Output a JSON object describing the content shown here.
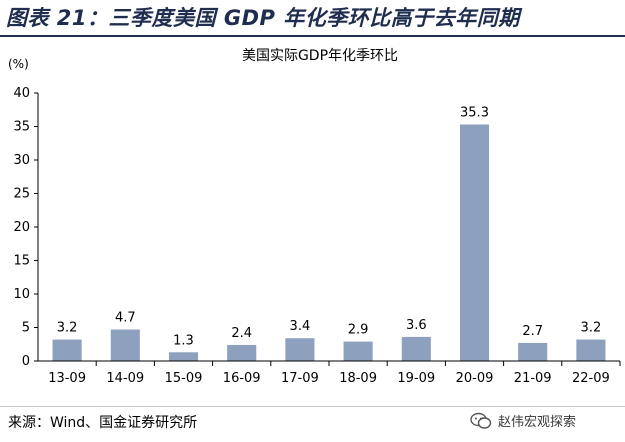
{
  "figure_title": "图表 21：三季度美国 GDP 年化季环比高于去年同期",
  "source": "来源：Wind、国金证券研究所",
  "watermark": "赵伟宏观探索",
  "watermark_icon": "wechat-icon",
  "colors": {
    "bar": "#8da0bd",
    "title": "#1f2d4e",
    "axis": "#000000"
  },
  "chart_data": {
    "type": "bar",
    "title": "美国实际GDP年化季环比",
    "ylabel": "(%)",
    "xlabel": "",
    "ylim": [
      0,
      40
    ],
    "yticks": [
      0,
      5,
      10,
      15,
      20,
      25,
      30,
      35,
      40
    ],
    "categories": [
      "13-09",
      "14-09",
      "15-09",
      "16-09",
      "17-09",
      "18-09",
      "19-09",
      "20-09",
      "21-09",
      "22-09"
    ],
    "values": [
      3.2,
      4.7,
      1.3,
      2.4,
      3.4,
      2.9,
      3.6,
      35.3,
      2.7,
      3.2
    ],
    "data_labels": [
      "3.2",
      "4.7",
      "1.3",
      "2.4",
      "3.4",
      "2.9",
      "3.6",
      "35.3",
      "2.7",
      "3.2"
    ],
    "grid": false,
    "legend": "none"
  }
}
